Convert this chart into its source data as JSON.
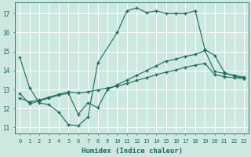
{
  "xlabel": "Humidex (Indice chaleur)",
  "xlim": [
    -0.5,
    23.5
  ],
  "ylim": [
    10.7,
    17.6
  ],
  "yticks": [
    11,
    12,
    13,
    14,
    15,
    16,
    17
  ],
  "xticks": [
    0,
    1,
    2,
    3,
    4,
    5,
    6,
    7,
    8,
    9,
    10,
    11,
    12,
    13,
    14,
    15,
    16,
    17,
    18,
    19,
    20,
    21,
    22,
    23
  ],
  "bg_color": "#cce8e0",
  "line_color": "#1a6b5a",
  "grid_color": "#ffffff",
  "lines": [
    {
      "x": [
        0,
        1,
        2,
        3,
        4,
        5,
        6,
        7,
        8,
        10,
        11,
        12,
        13,
        14,
        15,
        16,
        17,
        18,
        19,
        20,
        21,
        22,
        23
      ],
      "y": [
        14.7,
        13.1,
        12.3,
        12.2,
        11.8,
        11.15,
        11.1,
        11.55,
        14.4,
        16.0,
        17.15,
        17.3,
        17.05,
        17.15,
        17.0,
        17.0,
        17.0,
        17.15,
        15.1,
        14.8,
        13.9,
        13.7,
        13.6
      ]
    },
    {
      "x": [
        0,
        1,
        2,
        3,
        4,
        5,
        6,
        7,
        8,
        9,
        10,
        11,
        12,
        13,
        14,
        15,
        16,
        17,
        18,
        19,
        20,
        21,
        22,
        23
      ],
      "y": [
        12.8,
        12.25,
        12.4,
        12.55,
        12.7,
        12.8,
        11.7,
        12.3,
        12.05,
        13.0,
        13.25,
        13.5,
        13.75,
        14.0,
        14.25,
        14.5,
        14.6,
        14.75,
        14.85,
        15.05,
        13.95,
        13.85,
        13.75,
        13.65
      ]
    },
    {
      "x": [
        0,
        1,
        2,
        3,
        4,
        5,
        6,
        7,
        8,
        9,
        10,
        11,
        12,
        13,
        14,
        15,
        16,
        17,
        18,
        19,
        20,
        21,
        22,
        23
      ],
      "y": [
        12.55,
        12.35,
        12.45,
        12.6,
        12.75,
        12.88,
        12.82,
        12.88,
        12.98,
        13.08,
        13.18,
        13.32,
        13.48,
        13.62,
        13.78,
        13.92,
        14.02,
        14.18,
        14.28,
        14.38,
        13.78,
        13.68,
        13.62,
        13.58
      ]
    }
  ]
}
